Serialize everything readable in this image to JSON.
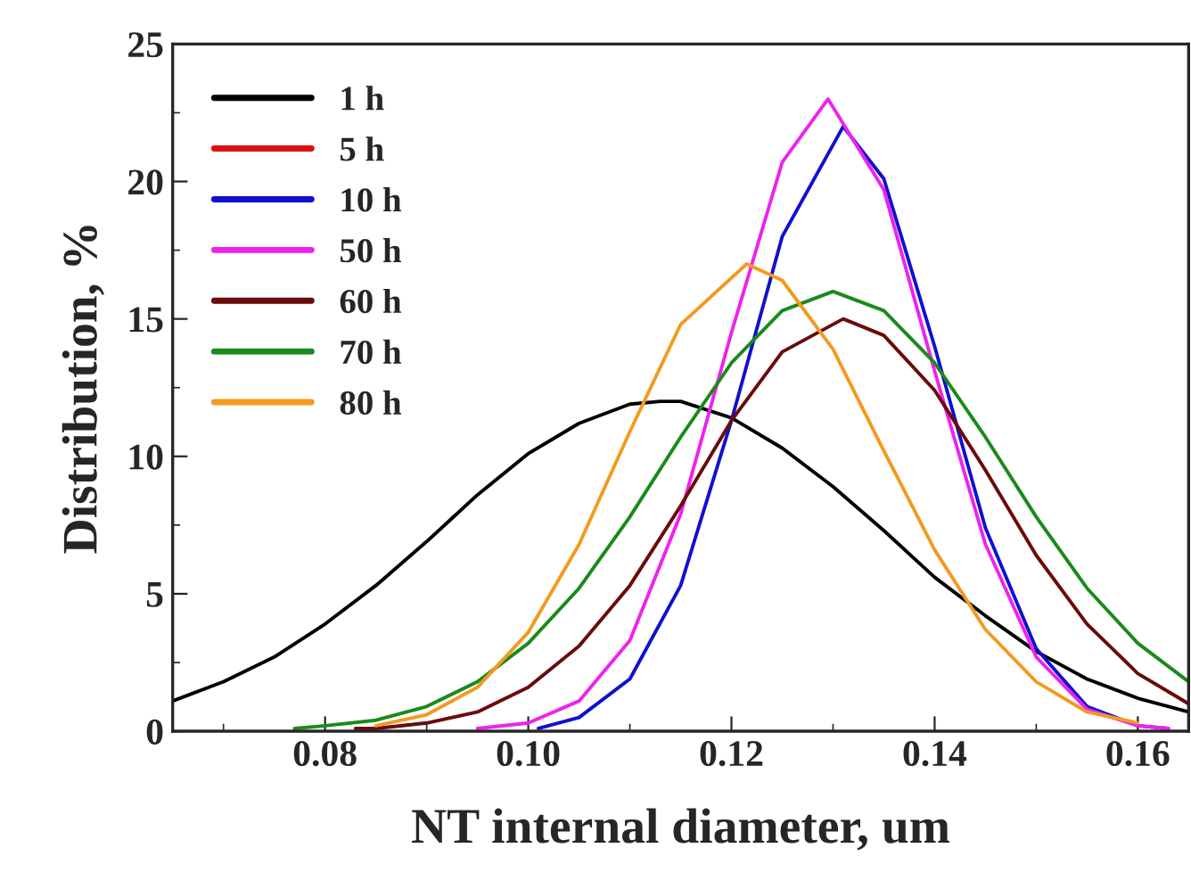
{
  "chart_data": {
    "type": "line",
    "xlabel": "NT internal diameter, um",
    "ylabel": "Distribution, %",
    "xlim": [
      0.065,
      0.165
    ],
    "ylim": [
      0,
      25
    ],
    "xticks": [
      {
        "value": 0.08,
        "label": "0.08"
      },
      {
        "value": 0.1,
        "label": "0.10"
      },
      {
        "value": 0.12,
        "label": "0.12"
      },
      {
        "value": 0.14,
        "label": "0.14"
      },
      {
        "value": 0.16,
        "label": "0.16"
      }
    ],
    "yticks": [
      0,
      5,
      10,
      15,
      20,
      25
    ],
    "grid": false,
    "legend": "top left",
    "marker": "none",
    "line_style": "solid",
    "series": [
      {
        "name": "1 h",
        "color": "#000000",
        "x": [
          0.065,
          0.07,
          0.075,
          0.08,
          0.085,
          0.09,
          0.095,
          0.1,
          0.105,
          0.11,
          0.113,
          0.115,
          0.12,
          0.125,
          0.13,
          0.135,
          0.14,
          0.145,
          0.15,
          0.155,
          0.16,
          0.165
        ],
        "values": [
          1.1,
          1.8,
          2.7,
          3.9,
          5.3,
          6.9,
          8.6,
          10.1,
          11.2,
          11.9,
          12.0,
          12.0,
          11.4,
          10.3,
          8.9,
          7.3,
          5.6,
          4.2,
          2.9,
          1.9,
          1.2,
          0.7
        ]
      },
      {
        "name": "5 h",
        "color": "#dd1111"
      },
      {
        "name": "10 h",
        "color": "#1010d0",
        "x": [
          0.101,
          0.105,
          0.11,
          0.115,
          0.12,
          0.125,
          0.131,
          0.135,
          0.14,
          0.145,
          0.15,
          0.155,
          0.16,
          0.163
        ],
        "values": [
          0.1,
          0.5,
          1.9,
          5.3,
          11.3,
          18.0,
          22.0,
          20.1,
          14.0,
          7.4,
          3.0,
          0.9,
          0.2,
          0.1
        ]
      },
      {
        "name": "50 h",
        "color": "#ee22ee",
        "x": [
          0.095,
          0.1,
          0.105,
          0.11,
          0.115,
          0.12,
          0.125,
          0.1295,
          0.135,
          0.14,
          0.145,
          0.15,
          0.155,
          0.16,
          0.163
        ],
        "values": [
          0.1,
          0.3,
          1.1,
          3.3,
          7.9,
          14.5,
          20.7,
          23.0,
          19.7,
          13.1,
          6.8,
          2.7,
          0.8,
          0.2,
          0.1
        ]
      },
      {
        "name": "60 h",
        "color": "#6b0a0a",
        "x": [
          0.083,
          0.085,
          0.09,
          0.095,
          0.1,
          0.105,
          0.11,
          0.115,
          0.12,
          0.125,
          0.131,
          0.135,
          0.14,
          0.145,
          0.15,
          0.155,
          0.16,
          0.165
        ],
        "values": [
          0.1,
          0.1,
          0.3,
          0.7,
          1.6,
          3.1,
          5.3,
          8.2,
          11.3,
          13.8,
          15.0,
          14.4,
          12.4,
          9.5,
          6.4,
          3.9,
          2.1,
          1.0
        ]
      },
      {
        "name": "70 h",
        "color": "#1a8a1a",
        "x": [
          0.077,
          0.08,
          0.085,
          0.09,
          0.095,
          0.1,
          0.105,
          0.11,
          0.115,
          0.12,
          0.125,
          0.13,
          0.135,
          0.14,
          0.145,
          0.15,
          0.155,
          0.16,
          0.165
        ],
        "values": [
          0.1,
          0.2,
          0.4,
          0.9,
          1.8,
          3.2,
          5.2,
          7.8,
          10.7,
          13.4,
          15.3,
          16.0,
          15.3,
          13.4,
          10.7,
          7.8,
          5.2,
          3.2,
          1.8
        ]
      },
      {
        "name": "80 h",
        "color": "#f29a20",
        "x": [
          0.085,
          0.09,
          0.095,
          0.1,
          0.105,
          0.11,
          0.115,
          0.1215,
          0.125,
          0.13,
          0.135,
          0.14,
          0.145,
          0.15,
          0.155,
          0.16
        ],
        "values": [
          0.2,
          0.6,
          1.6,
          3.6,
          6.8,
          10.9,
          14.8,
          17.0,
          16.4,
          13.9,
          10.2,
          6.6,
          3.7,
          1.8,
          0.7,
          0.3
        ]
      }
    ]
  }
}
